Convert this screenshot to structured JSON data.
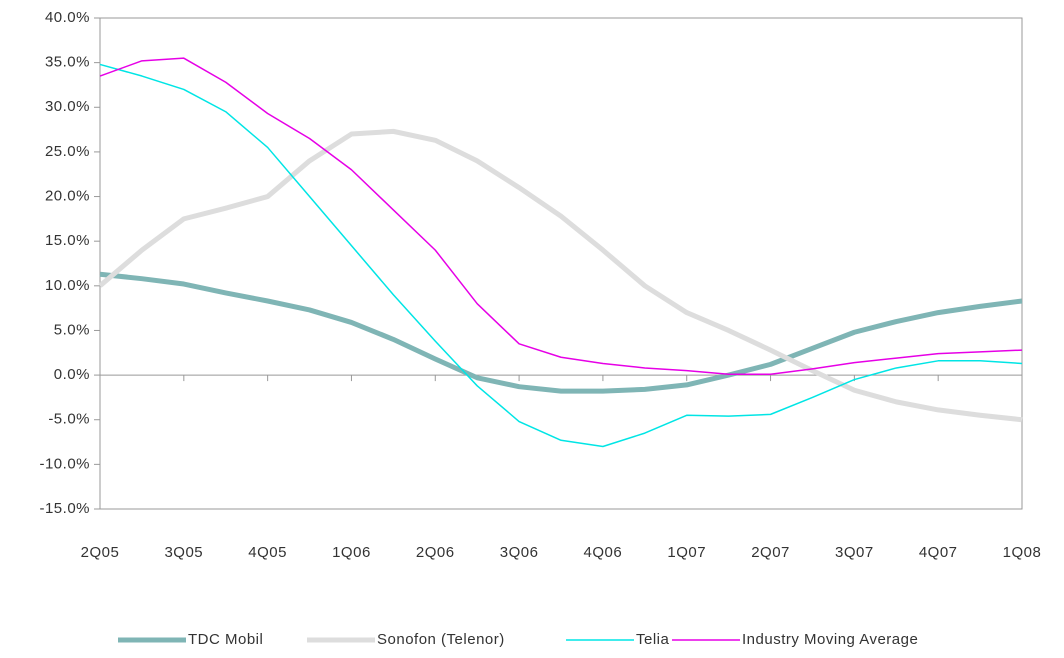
{
  "chart_data": {
    "type": "line",
    "categories": [
      "2Q05",
      null,
      "3Q05",
      null,
      "4Q05",
      null,
      "1Q06",
      null,
      "2Q06",
      null,
      "3Q06",
      null,
      "4Q06",
      null,
      "1Q07",
      null,
      "2Q07",
      null,
      "3Q07",
      null,
      "4Q07",
      null,
      "1Q08"
    ],
    "series": [
      {
        "name": "TDC Mobil",
        "color": "#7fb5b5",
        "values": [
          11.3,
          10.8,
          10.2,
          9.2,
          8.3,
          7.3,
          5.9,
          4.0,
          1.8,
          -0.3,
          -1.3,
          -1.8,
          -1.8,
          -1.6,
          -1.1,
          0.0,
          1.2,
          3.0,
          4.8,
          6.0,
          7.0,
          7.7,
          8.3
        ]
      },
      {
        "name": "Sonofon (Telenor)",
        "color": "#dddddd",
        "values": [
          10.0,
          14.0,
          17.5,
          18.7,
          20.0,
          24.0,
          27.0,
          27.3,
          26.3,
          24.0,
          21.0,
          17.8,
          14.0,
          10.0,
          7.0,
          5.0,
          2.8,
          0.5,
          -1.7,
          -3.0,
          -3.9,
          -4.5,
          -5.0
        ]
      },
      {
        "name": "Telia",
        "color": "#00e5e5",
        "values": [
          34.8,
          33.5,
          32.0,
          29.5,
          25.5,
          20.0,
          14.5,
          9.0,
          3.8,
          -1.2,
          -5.2,
          -7.3,
          -8.0,
          -6.5,
          -4.5,
          -4.6,
          -4.4,
          -2.5,
          -0.5,
          0.8,
          1.6,
          1.6,
          1.3
        ]
      },
      {
        "name": "Industry Moving Average",
        "color": "#e600e6",
        "values": [
          33.5,
          35.2,
          35.5,
          32.8,
          29.3,
          26.5,
          23.0,
          18.5,
          14.0,
          8.0,
          3.5,
          2.0,
          1.3,
          0.8,
          0.5,
          0.1,
          0.1,
          0.7,
          1.4,
          1.9,
          2.4,
          2.6,
          2.8
        ]
      }
    ],
    "ylim": [
      -15,
      40
    ],
    "yticks": [
      {
        "value": -15,
        "label": "-15.0%"
      },
      {
        "value": -10,
        "label": "-10.0%"
      },
      {
        "value": -5,
        "label": "-5.0%"
      },
      {
        "value": 0,
        "label": "0.0%"
      },
      {
        "value": 5,
        "label": "5.0%"
      },
      {
        "value": 10,
        "label": "10.0%"
      },
      {
        "value": 15,
        "label": "15.0%"
      },
      {
        "value": 20,
        "label": "20.0%"
      },
      {
        "value": 25,
        "label": "25.0%"
      },
      {
        "value": 30,
        "label": "30.0%"
      },
      {
        "value": 35,
        "label": "35.0%"
      },
      {
        "value": 40,
        "label": "40.0%"
      }
    ],
    "legend": "bottom"
  }
}
